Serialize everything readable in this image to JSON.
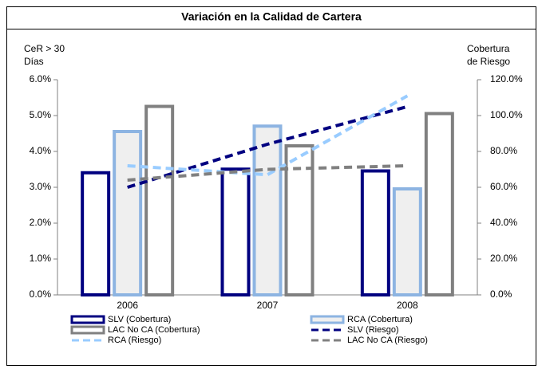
{
  "chart_data": {
    "type": "bar",
    "title": "Variación en la Calidad de Cartera",
    "ylabel": [
      "CeR > 30",
      "Días"
    ],
    "y2label": [
      "Cobertura",
      "de Riesgo"
    ],
    "categories": [
      "2006",
      "2007",
      "2008"
    ],
    "series": [
      {
        "name": "SLV (Cobertura)",
        "type": "bar",
        "axis": "y2",
        "color": "#000080",
        "fill": "#ffffff",
        "values": [
          69,
          71,
          70
        ]
      },
      {
        "name": "RCA (Cobertura)",
        "type": "bar",
        "axis": "y2",
        "color": "#8db4e2",
        "fill": "#efefef",
        "values": [
          92,
          95,
          60
        ]
      },
      {
        "name": "LAC No CA (Cobertura)",
        "type": "bar",
        "axis": "y2",
        "color": "#808080",
        "fill": "#ffffff",
        "values": [
          106,
          84,
          102
        ]
      },
      {
        "name": "SLV (Riesgo)",
        "type": "line",
        "color": "#000080",
        "values": [
          3.0,
          4.2,
          5.25
        ]
      },
      {
        "name": "RCA (Riesgo)",
        "type": "line",
        "color": "#99ccff",
        "values": [
          3.6,
          3.35,
          5.55
        ]
      },
      {
        "name": "LAC No CA (Riesgo)",
        "type": "line",
        "color": "#808080",
        "values": [
          3.2,
          3.5,
          3.6
        ]
      }
    ],
    "ylim": [
      0,
      6
    ],
    "yticks": [
      {
        "value": 0,
        "label": "0.0%"
      },
      {
        "value": 1,
        "label": "1.0%"
      },
      {
        "value": 2,
        "label": "2.0%"
      },
      {
        "value": 3,
        "label": "3.0%"
      },
      {
        "value": 4,
        "label": "4.0%"
      },
      {
        "value": 5,
        "label": "5.0%"
      },
      {
        "value": 6,
        "label": "6.0%"
      }
    ],
    "y2lim": [
      0,
      120
    ],
    "y2ticks": [
      {
        "value": 0,
        "label": "0.0%"
      },
      {
        "value": 20,
        "label": "20.0%"
      },
      {
        "value": 40,
        "label": "40.0%"
      },
      {
        "value": 60,
        "label": "60.0%"
      },
      {
        "value": 80,
        "label": "80.0%"
      },
      {
        "value": 100,
        "label": "100.0%"
      },
      {
        "value": 120,
        "label": "120.0%"
      }
    ],
    "grid": false
  }
}
